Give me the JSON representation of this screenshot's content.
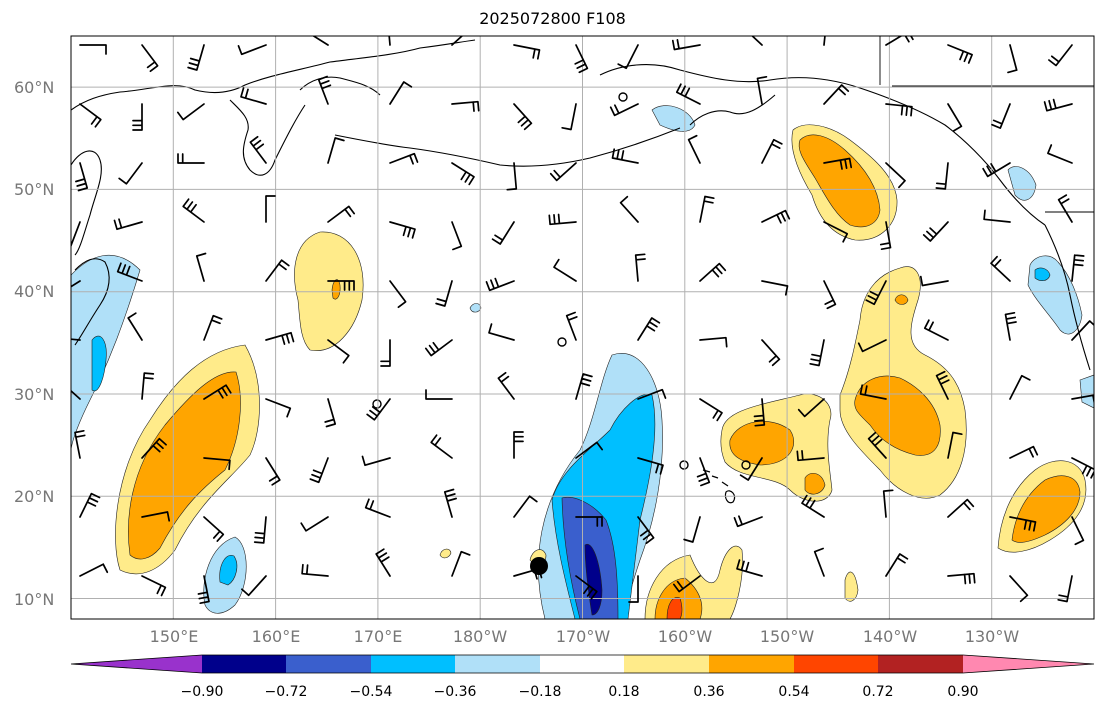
{
  "title": "2025072800 F108",
  "map": {
    "lat_labels": [
      "10°N",
      "20°N",
      "30°N",
      "40°N",
      "50°N",
      "60°N"
    ],
    "lat_values": [
      10,
      20,
      30,
      40,
      50,
      60
    ],
    "lon_labels": [
      "150°E",
      "160°E",
      "170°E",
      "180°W",
      "170°W",
      "160°W",
      "150°W",
      "140°W",
      "130°W"
    ],
    "lon_values": [
      150,
      160,
      170,
      180,
      190,
      200,
      210,
      220,
      230
    ],
    "extent": {
      "lon_min": 140,
      "lon_max": 240,
      "lat_min": 8,
      "lat_max": 65
    },
    "gridlines": true
  },
  "colorbar": {
    "labels": [
      "−0.90",
      "−0.72",
      "−0.54",
      "−0.36",
      "−0.18",
      "0.18",
      "0.36",
      "0.54",
      "0.72",
      "0.90"
    ],
    "colors": [
      "#9932cc",
      "#00008b",
      "#3a5fcd",
      "#00bfff",
      "#b0e0f8",
      "#ffffff",
      "#ffeb8a",
      "#ffa500",
      "#ff4500",
      "#b22222",
      "#ff88b0"
    ],
    "extend": "both"
  }
}
